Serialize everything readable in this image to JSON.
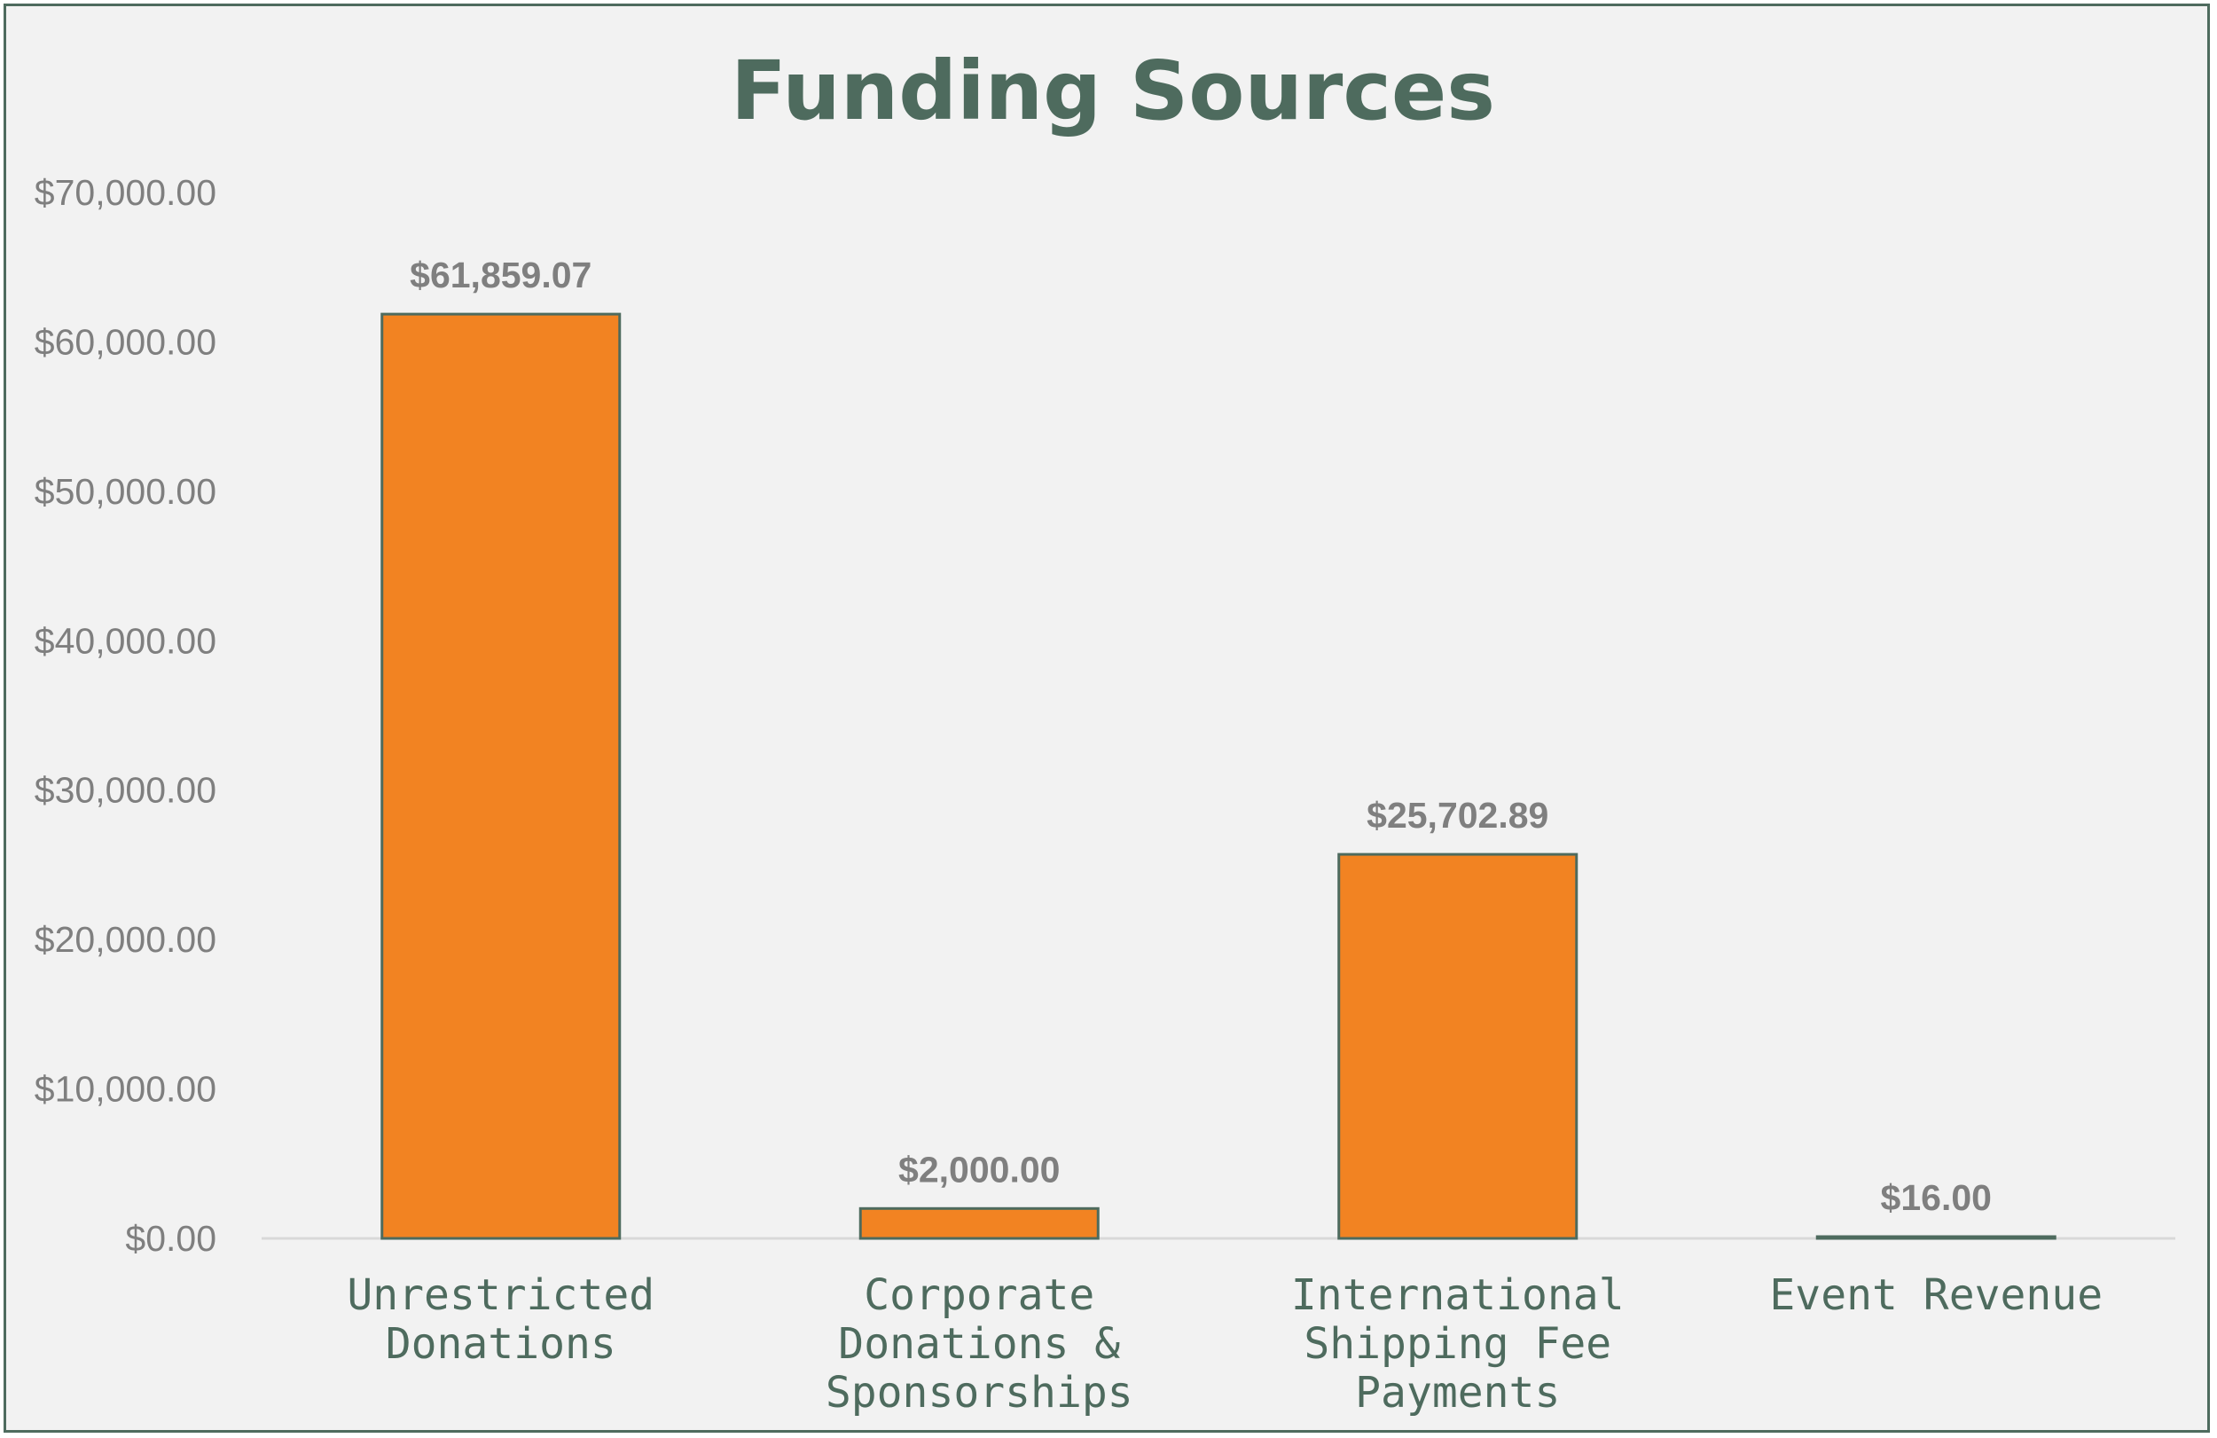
{
  "chart_data": {
    "type": "bar",
    "title": "Funding Sources",
    "categories": [
      [
        "Unrestricted",
        "Donations"
      ],
      [
        "Corporate",
        "Donations &",
        "Sponsorships"
      ],
      [
        "International",
        "Shipping Fee",
        "Payments"
      ],
      [
        "Event Revenue"
      ]
    ],
    "values": [
      61859.07,
      2000.0,
      25702.89,
      16.0
    ],
    "data_labels": [
      "$61,859.07",
      "$2,000.00",
      "$25,702.89",
      "$16.00"
    ],
    "y_ticks": [
      "$0.00",
      "$10,000.00",
      "$20,000.00",
      "$30,000.00",
      "$40,000.00",
      "$50,000.00",
      "$60,000.00",
      "$70,000.00"
    ],
    "ylim": [
      0,
      70000
    ],
    "grid": false,
    "colors": {
      "bar": "#f28322",
      "bar_outline": "#4e6b5e",
      "title": "#4e6b5e",
      "axis_text": "#7f7f7f",
      "background": "#f2f2f2",
      "baseline": "#d9d9d9"
    }
  }
}
